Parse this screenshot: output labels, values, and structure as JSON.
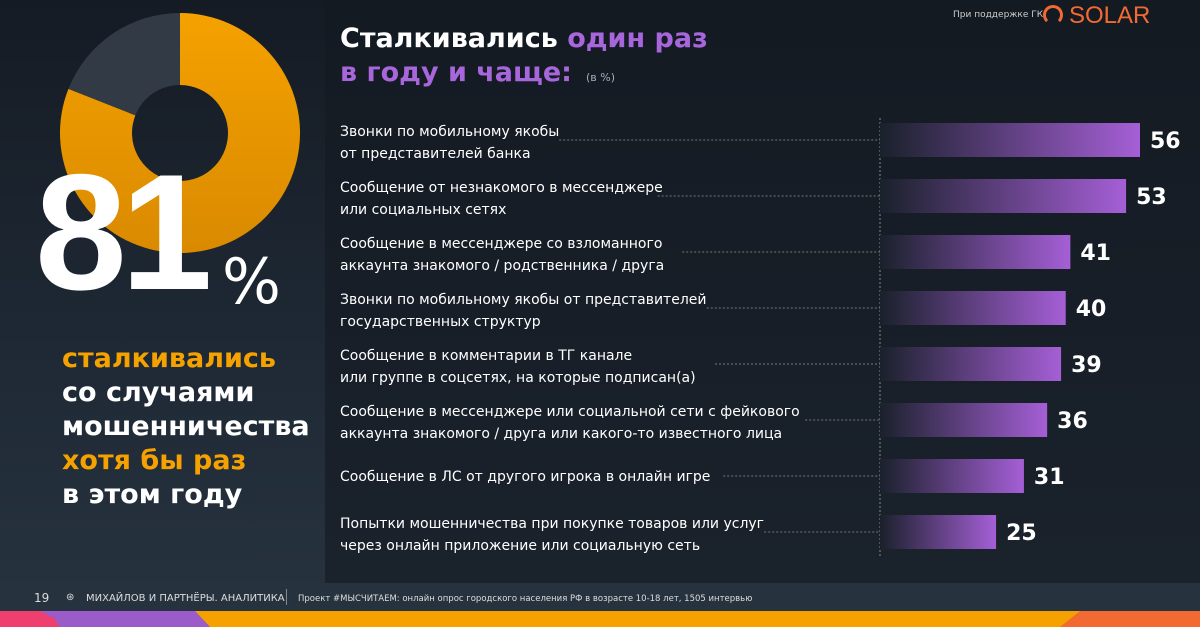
{
  "sponsor": {
    "text": "При поддержке ГК",
    "logo": "SOLAR",
    "logo_color": "#f26a32"
  },
  "summary": {
    "value": "81",
    "percent_sign": "%",
    "caption_lines": [
      {
        "text": "сталкивались",
        "highlight": true
      },
      {
        "text": "со случаями",
        "highlight": false
      },
      {
        "text": "мошенничества",
        "highlight": false
      },
      {
        "text": "хотя бы раз",
        "highlight": true
      },
      {
        "text": "в этом году",
        "highlight": false
      }
    ],
    "donut_fraction": 0.81,
    "donut_color": "#f5a100",
    "donut_rest_color": "#323a46"
  },
  "chart_data": {
    "type": "bar",
    "orientation": "horizontal",
    "title_part1": "Сталкивались",
    "title_part2": "один раз",
    "title_part3": "в году и чаще:",
    "unit": "(в %)",
    "bar_color": "#a55fd6",
    "categories": [
      [
        "Звонки по мобильному якобы",
        "от представителей банка"
      ],
      [
        "Сообщение от незнакомого в мессенджере",
        "или социальных сетях"
      ],
      [
        "Сообщение в мессенджере со взломанного",
        "аккаунта знакомого / родственника / друга"
      ],
      [
        "Звонки по мобильному якобы от представителей",
        "государственных структур"
      ],
      [
        "Сообщение в комментарии в ТГ канале",
        "или группе в соцсетях, на которые подписан(а)"
      ],
      [
        "Сообщение в мессенджере или социальной сети с фейкового",
        "аккаунта знакомого / друга или какого-то известного лица"
      ],
      [
        "Сообщение в ЛС от другого игрока в онлайн игре"
      ],
      [
        "Попытки мошенничества при покупке товаров или услуг",
        "через онлайн приложение или социальную сеть"
      ]
    ],
    "values": [
      56,
      53,
      41,
      40,
      39,
      36,
      31,
      25
    ]
  },
  "footer": {
    "page": "19",
    "brand": "МИХАЙЛОВ И ПАРТНЁРЫ. АНАЛИТИКА",
    "note": "Проект #МЫСЧИТАЕМ: онлайн опрос городского населения РФ в возрасте 10-18 лет, 1505 интервью"
  }
}
